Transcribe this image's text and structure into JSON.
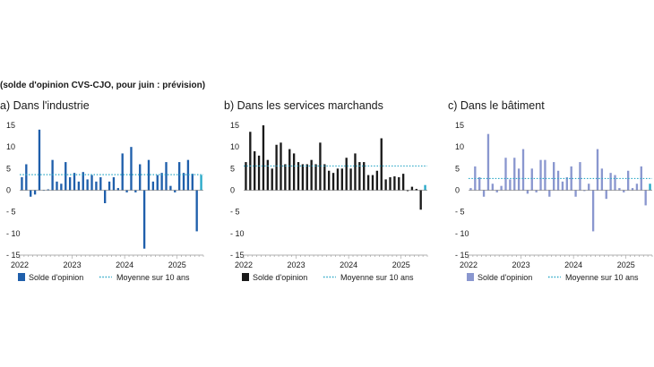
{
  "subtitle": "(solde d'opinion CVS-CJO, pour juin : prévision)",
  "legend": {
    "bar_label": "Solde d'opinion",
    "line_label": "Moyenne sur 10 ans"
  },
  "colors": {
    "forecast": "#27a8c8",
    "average_line": "#2aa7c6",
    "axis": "#999999"
  },
  "chart_data": [
    {
      "type": "bar",
      "title": "a)  Dans l'industrie",
      "color": "#1f5fab",
      "average": 3.6,
      "ylim": [
        -15,
        15
      ],
      "yticks": [
        15,
        10,
        5,
        0,
        -5,
        -10,
        -15
      ],
      "ytick_labels": [
        "15",
        "10",
        "5",
        "0",
        "- 5",
        "- 10",
        "- 15"
      ],
      "xtick_labels": [
        "2022",
        "2023",
        "2024",
        "2025"
      ],
      "period": "Jan 2022 – Jun 2025 (monthly)",
      "forecast_last": true,
      "values": [
        3,
        6,
        -1.5,
        -1,
        14,
        0,
        0.2,
        7,
        2,
        1.5,
        6.5,
        3,
        4,
        2,
        4.2,
        2.5,
        3.5,
        2,
        3,
        -3,
        2,
        3,
        0.5,
        8.5,
        -0.5,
        10,
        -0.5,
        6,
        -13.5,
        7,
        2,
        3.5,
        4,
        6.5,
        1,
        -0.5,
        6.5,
        4,
        7,
        3.8,
        -9.5,
        3.5
      ]
    },
    {
      "type": "bar",
      "title": "b)  Dans les services marchands",
      "color": "#1a1a1a",
      "average": 5.6,
      "ylim": [
        -15,
        15
      ],
      "yticks": [
        15,
        10,
        5,
        0,
        -5,
        -10,
        -15
      ],
      "ytick_labels": [
        "15",
        "10",
        "5",
        "0",
        "- 5",
        "- 10",
        "- 15"
      ],
      "xtick_labels": [
        "2022",
        "2023",
        "2024",
        "2025"
      ],
      "period": "Jan 2022 – Jun 2025 (monthly)",
      "forecast_last": true,
      "values": [
        6.5,
        13.5,
        9,
        8,
        15,
        7,
        5,
        10.5,
        11,
        6,
        9.5,
        8.5,
        6.5,
        6,
        6,
        7,
        6,
        11,
        6,
        4.5,
        4,
        5,
        5,
        7.5,
        5,
        8.5,
        6.5,
        6.5,
        3.5,
        3.5,
        4.5,
        12,
        2.5,
        3,
        3.2,
        3,
        3.8,
        -0.2,
        0.8,
        0.3,
        -4.5,
        1.2
      ]
    },
    {
      "type": "bar",
      "title": "c)  Dans le bâtiment",
      "color": "#8a97cf",
      "average": 2.7,
      "ylim": [
        -15,
        15
      ],
      "yticks": [
        15,
        10,
        5,
        0,
        -5,
        -10,
        -15
      ],
      "ytick_labels": [
        "15",
        "10",
        "5",
        "0",
        "- 5",
        "- 10",
        "- 15"
      ],
      "xtick_labels": [
        "2022",
        "2023",
        "2024",
        "2025"
      ],
      "period": "Jan 2022 – Jun 2025 (monthly)",
      "forecast_last": true,
      "values": [
        0.5,
        5.5,
        3,
        -1.5,
        13,
        1.5,
        -0.5,
        1,
        7.5,
        2.5,
        7.5,
        5,
        9.5,
        -0.8,
        5,
        -0.5,
        7,
        7,
        -1.5,
        6.5,
        4.5,
        2,
        3,
        5.5,
        -1.5,
        6.5,
        -0.2,
        1.5,
        -9.5,
        9.5,
        5,
        -2,
        4,
        3.5,
        0.5,
        -0.5,
        4.5,
        0.5,
        1.5,
        5.5,
        -3.5,
        1.5
      ]
    }
  ]
}
